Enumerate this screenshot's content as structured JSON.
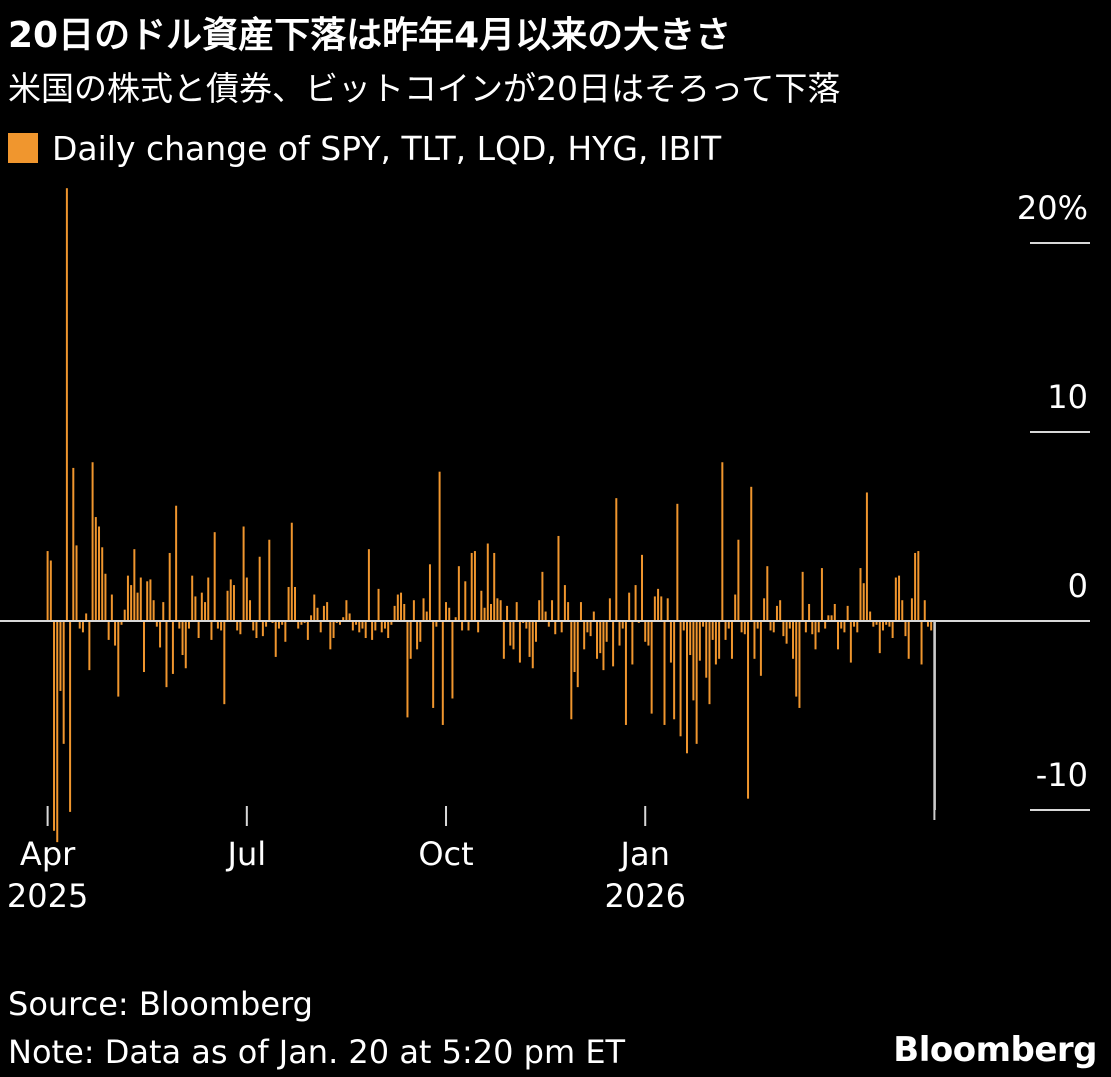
{
  "title": "20日のドル資産下落は昨年4月以来の大きさ",
  "subtitle": "米国の株式と債券、ビットコインが20日はそろって下落",
  "legend": {
    "label": "Daily change of SPY, TLT, LQD, HYG, IBIT",
    "color": "#f0962e"
  },
  "footer": {
    "source": "Source: Bloomberg",
    "note": "Note: Data as of Jan. 20 at 5:20 pm ET",
    "brand": "Bloomberg"
  },
  "chart_data": {
    "type": "bar",
    "title": "Daily change of SPY, TLT, LQD, HYG, IBIT",
    "xlabel": "",
    "ylabel": "",
    "ylim": [
      -11,
      21
    ],
    "yticks": [
      20,
      10,
      0,
      -10
    ],
    "ytick_labels": [
      "20%",
      "10",
      "0",
      "-10"
    ],
    "xticks": [
      {
        "label": "Apr",
        "year": "2025",
        "index": 0
      },
      {
        "label": "Jul",
        "year": "",
        "index": 62
      },
      {
        "label": "Oct",
        "year": "",
        "index": 124
      },
      {
        "label": "Jan",
        "year": "2026",
        "index": 186
      }
    ],
    "bar_color": "#f0962e",
    "highlight_last_color": "#cccccc",
    "series": [
      {
        "name": "Daily change of SPY, TLT, LQD, HYG, IBIT",
        "values": [
          3.7,
          3.2,
          -11.1,
          -11.7,
          -3.7,
          -6.5,
          22.9,
          -10.1,
          8.1,
          4.0,
          -0.4,
          -0.6,
          0.4,
          -2.6,
          8.4,
          5.5,
          5.0,
          3.9,
          2.5,
          -1.0,
          1.4,
          -1.3,
          -4.0,
          -0.2,
          0.6,
          2.4,
          1.9,
          3.8,
          1.5,
          2.3,
          -2.7,
          2.1,
          2.2,
          1.1,
          -0.3,
          -1.4,
          1.0,
          -3.5,
          3.6,
          -2.8,
          6.1,
          -0.4,
          -1.8,
          -2.5,
          -0.4,
          2.4,
          1.3,
          -0.9,
          1.5,
          1.0,
          2.3,
          -1.0,
          4.7,
          -0.4,
          -0.5,
          -4.4,
          1.6,
          2.2,
          1.9,
          -0.5,
          -0.7,
          5.0,
          2.3,
          1.1,
          -0.5,
          -0.9,
          3.4,
          -0.8,
          -0.3,
          4.3,
          -0.1,
          -1.9,
          -0.4,
          -0.2,
          -1.1,
          1.8,
          5.2,
          1.8,
          -0.4,
          -0.2,
          -0.1,
          -1.0,
          0.3,
          1.4,
          0.7,
          -0.6,
          0.8,
          1.0,
          -1.5,
          -0.9,
          -0.1,
          -0.2,
          0.2,
          1.1,
          0.4,
          -0.5,
          -0.2,
          -0.6,
          -0.4,
          -0.9,
          3.8,
          -1.0,
          -0.5,
          1.7,
          -0.6,
          -0.4,
          -0.9,
          -0.2,
          0.8,
          1.4,
          1.5,
          0.9,
          -5.1,
          -2.0,
          1.1,
          -1.5,
          -1.1,
          1.2,
          0.5,
          3.0,
          -4.6,
          -0.3,
          7.9,
          -5.5,
          1.0,
          0.7,
          -4.1,
          0.2,
          2.9,
          -0.5,
          2.1,
          -0.5,
          3.6,
          3.7,
          -0.6,
          1.6,
          0.7,
          4.1,
          0.9,
          3.6,
          1.2,
          1.1,
          -2.0,
          0.8,
          -1.3,
          -1.5,
          1.0,
          -2.2,
          -0.1,
          -0.4,
          -1.9,
          -2.5,
          -1.1,
          1.1,
          2.6,
          0.5,
          -0.3,
          1.1,
          -0.7,
          4.5,
          -0.6,
          1.9,
          1.0,
          -5.2,
          -2.7,
          -3.5,
          1.0,
          -1.5,
          -0.6,
          -0.8,
          0.5,
          -2.0,
          -1.7,
          -2.6,
          -1.1,
          1.2,
          -2.4,
          6.5,
          -1.3,
          -0.4,
          -5.5,
          1.5,
          -2.3,
          1.9,
          -0.1,
          3.5,
          -1.1,
          -1.3,
          -4.9,
          1.3,
          1.7,
          1.3,
          -5.5,
          1.2,
          -2.2,
          -5.2,
          6.2,
          -6.1,
          -0.5,
          -7.0,
          -1.8,
          -4.2,
          -6.5,
          -2.1,
          -0.3,
          -3.0,
          -4.4,
          -1.0,
          -2.3,
          -2.0,
          8.4,
          -1.0,
          -0.4,
          -2.0,
          1.4,
          4.3,
          -0.6,
          -0.7,
          -9.4,
          7.1,
          -2.0,
          -0.4,
          -2.9,
          1.2,
          2.9,
          -0.5,
          -0.6,
          0.8,
          1.1,
          -0.8,
          -1.2,
          -0.4,
          -2.0,
          -4.0,
          -4.6,
          2.6,
          -0.6,
          0.9,
          -0.7,
          -1.5,
          -0.6,
          2.8,
          -0.4,
          0.3,
          0.3,
          0.9,
          -1.5,
          -0.4,
          -0.6,
          0.8,
          -2.2,
          -0.3,
          -0.6,
          2.8,
          2.0,
          6.8,
          0.5,
          -0.3,
          -0.2,
          -1.7,
          -0.5,
          -0.2,
          -0.3,
          -0.9,
          2.3,
          2.4,
          1.1,
          -0.8,
          -2.0,
          1.2,
          3.6,
          3.7,
          -2.3,
          1.1,
          -0.3,
          -0.5,
          -10.0
        ]
      }
    ]
  }
}
